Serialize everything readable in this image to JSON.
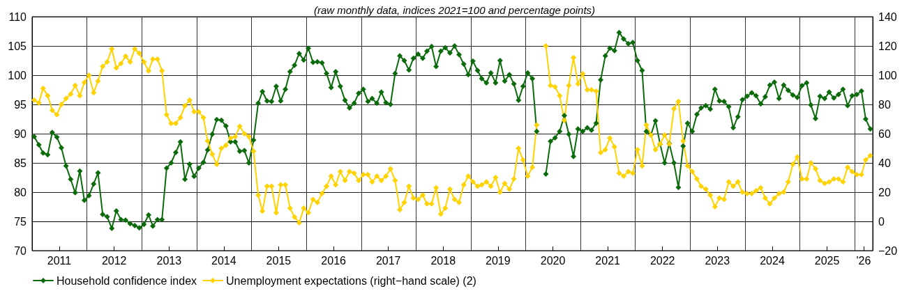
{
  "chart_data": {
    "type": "line",
    "subtitle": "(raw monthly data, indices 2021=100 and percentage points)",
    "x": [
      "2011-01",
      "2011-02",
      "2011-03",
      "2011-04",
      "2011-05",
      "2011-06",
      "2011-07",
      "2011-08",
      "2011-09",
      "2011-10",
      "2011-11",
      "2011-12",
      "2012-01",
      "2012-02",
      "2012-03",
      "2012-04",
      "2012-05",
      "2012-06",
      "2012-07",
      "2012-08",
      "2012-09",
      "2012-10",
      "2012-11",
      "2012-12",
      "2013-01",
      "2013-02",
      "2013-03",
      "2013-04",
      "2013-05",
      "2013-06",
      "2013-07",
      "2013-08",
      "2013-09",
      "2013-10",
      "2013-11",
      "2013-12",
      "2014-01",
      "2014-02",
      "2014-03",
      "2014-04",
      "2014-05",
      "2014-06",
      "2014-07",
      "2014-08",
      "2014-09",
      "2014-10",
      "2014-11",
      "2014-12",
      "2015-01",
      "2015-02",
      "2015-03",
      "2015-04",
      "2015-05",
      "2015-06",
      "2015-07",
      "2015-08",
      "2015-09",
      "2015-10",
      "2015-11",
      "2015-12",
      "2016-01",
      "2016-02",
      "2016-03",
      "2016-04",
      "2016-05",
      "2016-06",
      "2016-07",
      "2016-08",
      "2016-09",
      "2016-10",
      "2016-11",
      "2016-12",
      "2017-01",
      "2017-02",
      "2017-03",
      "2017-04",
      "2017-05",
      "2017-06",
      "2017-07",
      "2017-08",
      "2017-09",
      "2017-10",
      "2017-11",
      "2017-12",
      "2018-01",
      "2018-02",
      "2018-03",
      "2018-04",
      "2018-05",
      "2018-06",
      "2018-07",
      "2018-08",
      "2018-09",
      "2018-10",
      "2018-11",
      "2018-12",
      "2019-01",
      "2019-02",
      "2019-03",
      "2019-04",
      "2019-05",
      "2019-06",
      "2019-07",
      "2019-08",
      "2019-09",
      "2019-10",
      "2019-11",
      "2019-12",
      "2020-01",
      "2020-02",
      "2020-03",
      "2020-04",
      "2020-05",
      "2020-06",
      "2020-07",
      "2020-08",
      "2020-09",
      "2020-10",
      "2020-11",
      "2020-12",
      "2021-01",
      "2021-02",
      "2021-03",
      "2021-04",
      "2021-05",
      "2021-06",
      "2021-07",
      "2021-08",
      "2021-09",
      "2021-10",
      "2021-11",
      "2021-12",
      "2022-01",
      "2022-02",
      "2022-03",
      "2022-04",
      "2022-05",
      "2022-06",
      "2022-07",
      "2022-08",
      "2022-09",
      "2022-10",
      "2022-11",
      "2022-12",
      "2023-01",
      "2023-02",
      "2023-03",
      "2023-04",
      "2023-05",
      "2023-06",
      "2023-07",
      "2023-08",
      "2023-09",
      "2023-10",
      "2023-11",
      "2023-12",
      "2024-01",
      "2024-02",
      "2024-03",
      "2024-04",
      "2024-05",
      "2024-06",
      "2024-07",
      "2024-08",
      "2024-09",
      "2024-10",
      "2024-11",
      "2024-12",
      "2025-01",
      "2025-02",
      "2025-03",
      "2025-04",
      "2025-05",
      "2025-06",
      "2025-07",
      "2025-08",
      "2025-09",
      "2025-10",
      "2025-11",
      "2025-12",
      "2026-01",
      "2026-02",
      "2026-03",
      "2026-04"
    ],
    "series": [
      {
        "name": "Household confidence index",
        "color": "#0b6b0b",
        "values": [
          89.5,
          88.1,
          86.7,
          86.4,
          90.2,
          89.4,
          87.6,
          84.5,
          82.2,
          79.9,
          83.6,
          78.6,
          79.4,
          81.4,
          83.3,
          76.2,
          75.8,
          73.8,
          76.8,
          75.3,
          75.2,
          74.6,
          74.3,
          73.9,
          74.5,
          76.1,
          74.2,
          75.3,
          75.3,
          84.1,
          85.0,
          86.8,
          88.6,
          82.2,
          84.8,
          82.7,
          84.1,
          85.1,
          87.2,
          89.9,
          92.4,
          92.3,
          91.3,
          88.6,
          88.6,
          87.0,
          87.1,
          85.0,
          88.9,
          95.2,
          97.2,
          95.6,
          95.5,
          98.1,
          95.6,
          97.6,
          100.6,
          101.7,
          103.7,
          102.6,
          104.6,
          102.2,
          102.3,
          102.1,
          100.3,
          97.9,
          100.6,
          98.1,
          95.7,
          94.4,
          95.2,
          96.9,
          97.6,
          95.5,
          96.0,
          95.2,
          97.1,
          95.3,
          95.0,
          100.3,
          103.3,
          102.5,
          100.9,
          102.9,
          103.6,
          102.9,
          104.1,
          104.9,
          101.5,
          104.1,
          104.7,
          103.8,
          105.0,
          103.5,
          101.9,
          100.1,
          102.4,
          100.8,
          99.4,
          98.7,
          100.4,
          98.7,
          102.5,
          99.0,
          100.1,
          98.5,
          95.7,
          98.1,
          100.4,
          99.4,
          90.4,
          null,
          83.1,
          88.7,
          89.3,
          90.4,
          93.1,
          89.9,
          86.1,
          90.8,
          90.4,
          91.0,
          90.6,
          91.8,
          99.2,
          103.3,
          104.6,
          104.2,
          107.3,
          106.2,
          105.4,
          105.6,
          102.5,
          100.8,
          90.4,
          89.8,
          92.2,
          88.2,
          85.0,
          88.3,
          85.0,
          80.8,
          87.9,
          91.8,
          90.4,
          93.3,
          94.4,
          94.8,
          94.2,
          97.6,
          95.6,
          95.5,
          94.6,
          91.0,
          92.9,
          95.8,
          96.4,
          97.0,
          96.5,
          95.1,
          96.3,
          98.3,
          98.8,
          96.0,
          98.3,
          97.4,
          96.6,
          96.2,
          98.2,
          98.7,
          94.9,
          92.6,
          96.4,
          96.0,
          97.1,
          96.1,
          96.7,
          97.6,
          94.8,
          96.5,
          96.7,
          97.3,
          92.5,
          90.8
        ]
      },
      {
        "name": "Unemployment expectations (right−hand scale) (2)",
        "color": "#ffd200",
        "axis": "y2",
        "values": [
          83,
          81,
          91,
          86,
          76,
          73,
          80,
          84,
          87,
          93,
          86,
          95,
          100,
          88,
          96,
          106,
          109,
          118,
          105,
          108,
          113,
          109,
          118,
          115,
          109,
          103,
          111,
          111,
          103,
          73,
          67,
          67,
          71,
          79,
          83,
          75,
          75,
          71,
          55,
          46,
          39,
          50,
          52,
          57,
          58,
          65,
          60,
          58,
          48,
          18,
          7,
          24,
          24,
          6,
          25,
          25,
          9,
          3,
          -1,
          9,
          6,
          15,
          13,
          19,
          24,
          31,
          25,
          34,
          28,
          34,
          33,
          28,
          32,
          32,
          27,
          31,
          28,
          31,
          36,
          28,
          8,
          13,
          24,
          16,
          15,
          18,
          12,
          12,
          23,
          5,
          9,
          22,
          15,
          13,
          25,
          31,
          27,
          24,
          25,
          27,
          24,
          30,
          20,
          26,
          22,
          29,
          50,
          42,
          31,
          37,
          66,
          null,
          120,
          93,
          92,
          86,
          69,
          93,
          112,
          94,
          101,
          90,
          90,
          89,
          47,
          49,
          57,
          51,
          33,
          31,
          34,
          33,
          49,
          38,
          66,
          59,
          49,
          53,
          59,
          53,
          77,
          82,
          55,
          38,
          34,
          29,
          24,
          22,
          18,
          10,
          16,
          15,
          27,
          24,
          27,
          20,
          19,
          19,
          21,
          23,
          16,
          12,
          16,
          19,
          20,
          27,
          39,
          44,
          29,
          29,
          40,
          36,
          28,
          26,
          27,
          29,
          29,
          27,
          37,
          34,
          32,
          32,
          42,
          45
        ]
      }
    ],
    "xlim": [
      "2011-01-01",
      "2026-05-01"
    ],
    "xticks": [
      {
        "value": "2011-07-01",
        "label": "2011"
      },
      {
        "value": "2012-01-01",
        "label": null
      },
      {
        "value": "2012-07-01",
        "label": "2012"
      },
      {
        "value": "2013-01-01",
        "label": null
      },
      {
        "value": "2013-07-01",
        "label": "2013"
      },
      {
        "value": "2014-01-01",
        "label": null
      },
      {
        "value": "2014-07-01",
        "label": "2014"
      },
      {
        "value": "2015-01-01",
        "label": null
      },
      {
        "value": "2015-07-01",
        "label": "2015"
      },
      {
        "value": "2016-01-01",
        "label": null
      },
      {
        "value": "2016-07-01",
        "label": "2016"
      },
      {
        "value": "2017-01-01",
        "label": null
      },
      {
        "value": "2017-07-01",
        "label": "2017"
      },
      {
        "value": "2018-01-01",
        "label": null
      },
      {
        "value": "2018-07-01",
        "label": "2018"
      },
      {
        "value": "2019-01-01",
        "label": null
      },
      {
        "value": "2019-07-01",
        "label": "2019"
      },
      {
        "value": "2020-01-01",
        "label": null
      },
      {
        "value": "2020-07-01",
        "label": "2020"
      },
      {
        "value": "2021-01-01",
        "label": null
      },
      {
        "value": "2021-07-01",
        "label": "2021"
      },
      {
        "value": "2022-01-01",
        "label": null
      },
      {
        "value": "2022-07-01",
        "label": "2022"
      },
      {
        "value": "2023-01-01",
        "label": null
      },
      {
        "value": "2023-07-01",
        "label": "2023"
      },
      {
        "value": "2024-01-01",
        "label": null
      },
      {
        "value": "2024-07-01",
        "label": "2024"
      },
      {
        "value": "2025-01-01",
        "label": null
      },
      {
        "value": "2025-07-01",
        "label": "2025"
      },
      {
        "value": "2026-01-01",
        "label": null
      },
      {
        "value": "2026-03-01",
        "label": "'26"
      }
    ],
    "ylim": [
      70,
      110
    ],
    "yticks": [
      70,
      75,
      80,
      85,
      90,
      95,
      100,
      105,
      110
    ],
    "y2lim": [
      -20,
      140
    ],
    "y2ticks": [
      -20,
      0,
      20,
      40,
      60,
      80,
      100,
      120,
      140
    ],
    "grid": true,
    "legend": "bottom left",
    "marker": "diamond"
  }
}
